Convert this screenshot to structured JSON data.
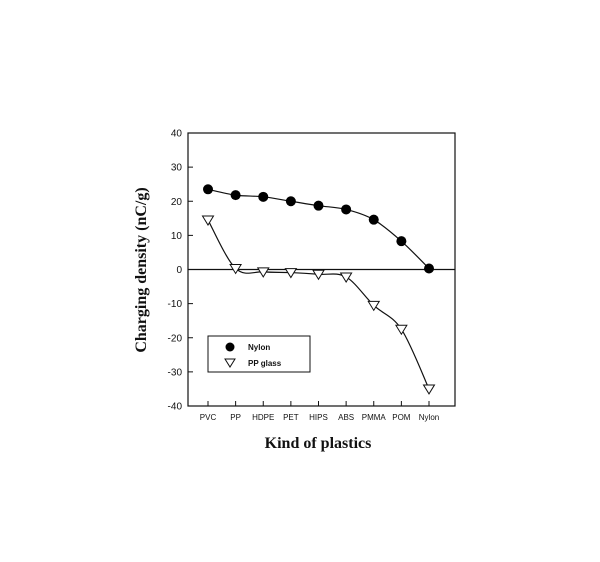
{
  "chart_data": {
    "type": "line",
    "xlabel": "Kind of plastics",
    "ylabel": "Charging density (nC/g)",
    "categories": [
      "PVC",
      "PP",
      "HDPE",
      "PET",
      "HIPS",
      "ABS",
      "PMMA",
      "POM",
      "Nylon"
    ],
    "ylim": [
      -40,
      40
    ],
    "yticks": [
      40,
      30,
      20,
      10,
      0,
      -10,
      -20,
      -30,
      -40
    ],
    "zero_line": true,
    "grid": false,
    "legend_position": "lower-left",
    "series": [
      {
        "name": "Nylon",
        "marker": "filled-circle",
        "values": [
          23.5,
          21.8,
          21.3,
          20,
          18.7,
          17.6,
          14.6,
          8.3,
          0.3
        ]
      },
      {
        "name": "PP glass",
        "marker": "open-triangle-down",
        "values": [
          14.5,
          0.3,
          -0.7,
          -0.9,
          -1.4,
          -2.2,
          -10.5,
          -17.5,
          -35
        ]
      }
    ]
  }
}
